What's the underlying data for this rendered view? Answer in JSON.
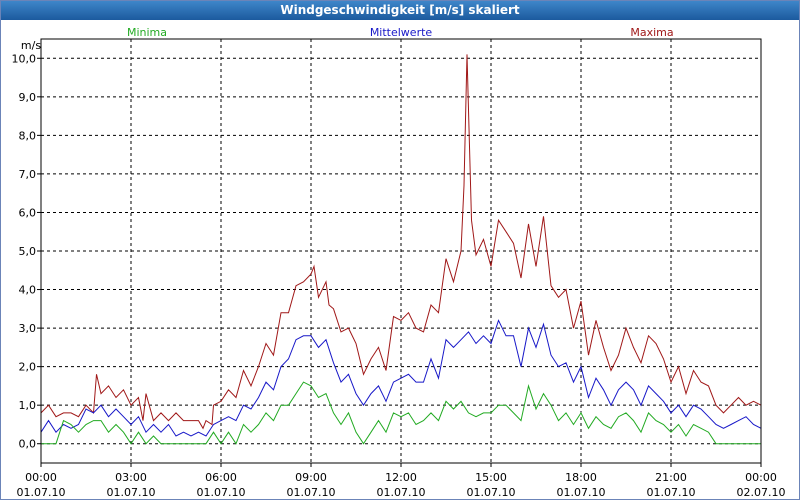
{
  "window": {
    "title": "Windgeschwindigkeit [m/s] skaliert"
  },
  "colors": {
    "min": "#22aa22",
    "mean": "#1818c8",
    "max": "#a01818",
    "grid": "#000000"
  },
  "chart_data": {
    "type": "line",
    "title": "Windgeschwindigkeit [m/s] skaliert",
    "ylabel": "m/s",
    "ylim": [
      -0.5,
      10.5
    ],
    "xlim": [
      0,
      24
    ],
    "y_ticks": [
      0,
      1,
      2,
      3,
      4,
      5,
      6,
      7,
      8,
      9,
      10
    ],
    "y_tick_labels": [
      "0,0",
      "1,0",
      "2,0",
      "3,0",
      "4,0",
      "5,0",
      "6,0",
      "7,0",
      "8,0",
      "9,0",
      "10,0"
    ],
    "x_ticks": [
      0,
      3,
      6,
      9,
      12,
      15,
      18,
      21,
      24
    ],
    "x_tick_labels": [
      [
        "00:00",
        "01.07.10"
      ],
      [
        "03:00",
        "01.07.10"
      ],
      [
        "06:00",
        "01.07.10"
      ],
      [
        "09:00",
        "01.07.10"
      ],
      [
        "12:00",
        "01.07.10"
      ],
      [
        "15:00",
        "01.07.10"
      ],
      [
        "18:00",
        "01.07.10"
      ],
      [
        "21:00",
        "01.07.10"
      ],
      [
        "00:00",
        "02.07.10"
      ]
    ],
    "legend": [
      "Minima",
      "Mittelwerte",
      "Maxima"
    ],
    "grid": true,
    "series": [
      {
        "name": "Maxima",
        "color": "#a01818",
        "points": [
          [
            0,
            0.8
          ],
          [
            0.25,
            1.0
          ],
          [
            0.5,
            0.7
          ],
          [
            0.75,
            0.8
          ],
          [
            1,
            0.8
          ],
          [
            1.25,
            0.7
          ],
          [
            1.5,
            1.0
          ],
          [
            1.75,
            0.8
          ],
          [
            1.85,
            1.8
          ],
          [
            2.0,
            1.3
          ],
          [
            2.25,
            1.5
          ],
          [
            2.5,
            1.2
          ],
          [
            2.75,
            1.4
          ],
          [
            3.0,
            1.0
          ],
          [
            3.25,
            1.2
          ],
          [
            3.4,
            0.6
          ],
          [
            3.5,
            1.3
          ],
          [
            3.75,
            0.6
          ],
          [
            4.0,
            0.8
          ],
          [
            4.25,
            0.6
          ],
          [
            4.5,
            0.8
          ],
          [
            4.75,
            0.6
          ],
          [
            5.0,
            0.6
          ],
          [
            5.25,
            0.6
          ],
          [
            5.4,
            0.4
          ],
          [
            5.5,
            0.6
          ],
          [
            5.7,
            0.5
          ],
          [
            5.75,
            1.0
          ],
          [
            6.0,
            1.1
          ],
          [
            6.25,
            1.4
          ],
          [
            6.5,
            1.2
          ],
          [
            6.75,
            1.9
          ],
          [
            7.0,
            1.5
          ],
          [
            7.25,
            2.0
          ],
          [
            7.5,
            2.6
          ],
          [
            7.75,
            2.3
          ],
          [
            8.0,
            3.4
          ],
          [
            8.25,
            3.4
          ],
          [
            8.5,
            4.1
          ],
          [
            8.75,
            4.2
          ],
          [
            9.0,
            4.4
          ],
          [
            9.1,
            4.6
          ],
          [
            9.25,
            3.8
          ],
          [
            9.5,
            4.2
          ],
          [
            9.6,
            3.6
          ],
          [
            9.75,
            3.5
          ],
          [
            10.0,
            2.9
          ],
          [
            10.25,
            3.0
          ],
          [
            10.5,
            2.6
          ],
          [
            10.75,
            1.8
          ],
          [
            11.0,
            2.2
          ],
          [
            11.25,
            2.5
          ],
          [
            11.5,
            1.9
          ],
          [
            11.75,
            3.3
          ],
          [
            12.0,
            3.2
          ],
          [
            12.25,
            3.4
          ],
          [
            12.5,
            3.0
          ],
          [
            12.75,
            2.9
          ],
          [
            13.0,
            3.6
          ],
          [
            13.25,
            3.4
          ],
          [
            13.5,
            4.8
          ],
          [
            13.75,
            4.2
          ],
          [
            14.0,
            5.0
          ],
          [
            14.1,
            6.7
          ],
          [
            14.2,
            10.1
          ],
          [
            14.35,
            5.8
          ],
          [
            14.5,
            4.9
          ],
          [
            14.75,
            5.3
          ],
          [
            15.0,
            4.6
          ],
          [
            15.25,
            5.8
          ],
          [
            15.5,
            5.5
          ],
          [
            15.75,
            5.2
          ],
          [
            16.0,
            4.3
          ],
          [
            16.25,
            5.7
          ],
          [
            16.5,
            4.6
          ],
          [
            16.75,
            5.9
          ],
          [
            17.0,
            4.1
          ],
          [
            17.25,
            3.8
          ],
          [
            17.5,
            4.0
          ],
          [
            17.75,
            3.0
          ],
          [
            18.0,
            3.7
          ],
          [
            18.25,
            2.3
          ],
          [
            18.5,
            3.2
          ],
          [
            18.75,
            2.5
          ],
          [
            19.0,
            1.9
          ],
          [
            19.25,
            2.3
          ],
          [
            19.5,
            3.0
          ],
          [
            19.75,
            2.5
          ],
          [
            20.0,
            2.1
          ],
          [
            20.25,
            2.8
          ],
          [
            20.5,
            2.6
          ],
          [
            20.75,
            2.2
          ],
          [
            21.0,
            1.6
          ],
          [
            21.25,
            2.0
          ],
          [
            21.5,
            1.3
          ],
          [
            21.75,
            1.9
          ],
          [
            22.0,
            1.6
          ],
          [
            22.25,
            1.5
          ],
          [
            22.5,
            1.0
          ],
          [
            22.75,
            0.8
          ],
          [
            23.0,
            1.0
          ],
          [
            23.25,
            1.2
          ],
          [
            23.5,
            1.0
          ],
          [
            23.75,
            1.1
          ],
          [
            24.0,
            1.0
          ]
        ]
      },
      {
        "name": "Mittelwerte",
        "color": "#1818c8",
        "points": [
          [
            0,
            0.3
          ],
          [
            0.25,
            0.6
          ],
          [
            0.5,
            0.3
          ],
          [
            0.75,
            0.5
          ],
          [
            1,
            0.4
          ],
          [
            1.25,
            0.5
          ],
          [
            1.5,
            0.9
          ],
          [
            1.75,
            0.8
          ],
          [
            2.0,
            1.0
          ],
          [
            2.25,
            0.7
          ],
          [
            2.5,
            0.9
          ],
          [
            2.75,
            0.7
          ],
          [
            3.0,
            0.5
          ],
          [
            3.25,
            0.7
          ],
          [
            3.5,
            0.3
          ],
          [
            3.75,
            0.5
          ],
          [
            4.0,
            0.3
          ],
          [
            4.25,
            0.5
          ],
          [
            4.5,
            0.2
          ],
          [
            4.75,
            0.3
          ],
          [
            5.0,
            0.2
          ],
          [
            5.25,
            0.3
          ],
          [
            5.5,
            0.2
          ],
          [
            5.75,
            0.5
          ],
          [
            6.0,
            0.6
          ],
          [
            6.25,
            0.7
          ],
          [
            6.5,
            0.6
          ],
          [
            6.75,
            1.0
          ],
          [
            7.0,
            0.9
          ],
          [
            7.25,
            1.2
          ],
          [
            7.5,
            1.6
          ],
          [
            7.75,
            1.4
          ],
          [
            8.0,
            2.0
          ],
          [
            8.25,
            2.2
          ],
          [
            8.5,
            2.7
          ],
          [
            8.75,
            2.8
          ],
          [
            9.0,
            2.8
          ],
          [
            9.25,
            2.5
          ],
          [
            9.5,
            2.7
          ],
          [
            9.75,
            2.1
          ],
          [
            10.0,
            1.6
          ],
          [
            10.25,
            1.8
          ],
          [
            10.5,
            1.3
          ],
          [
            10.75,
            1.0
          ],
          [
            11.0,
            1.3
          ],
          [
            11.25,
            1.5
          ],
          [
            11.5,
            1.1
          ],
          [
            11.75,
            1.6
          ],
          [
            12.0,
            1.7
          ],
          [
            12.25,
            1.8
          ],
          [
            12.5,
            1.6
          ],
          [
            12.75,
            1.6
          ],
          [
            13.0,
            2.2
          ],
          [
            13.25,
            1.7
          ],
          [
            13.5,
            2.7
          ],
          [
            13.75,
            2.5
          ],
          [
            14.0,
            2.7
          ],
          [
            14.25,
            2.9
          ],
          [
            14.5,
            2.6
          ],
          [
            14.75,
            2.8
          ],
          [
            15.0,
            2.6
          ],
          [
            15.25,
            3.2
          ],
          [
            15.5,
            2.8
          ],
          [
            15.75,
            2.8
          ],
          [
            16.0,
            2.0
          ],
          [
            16.25,
            3.0
          ],
          [
            16.5,
            2.5
          ],
          [
            16.75,
            3.1
          ],
          [
            17.0,
            2.3
          ],
          [
            17.25,
            2.0
          ],
          [
            17.5,
            2.1
          ],
          [
            17.75,
            1.6
          ],
          [
            18.0,
            2.0
          ],
          [
            18.25,
            1.2
          ],
          [
            18.5,
            1.7
          ],
          [
            18.75,
            1.4
          ],
          [
            19.0,
            1.0
          ],
          [
            19.25,
            1.4
          ],
          [
            19.5,
            1.6
          ],
          [
            19.75,
            1.4
          ],
          [
            20.0,
            1.0
          ],
          [
            20.25,
            1.5
          ],
          [
            20.5,
            1.3
          ],
          [
            20.75,
            1.1
          ],
          [
            21.0,
            0.8
          ],
          [
            21.25,
            1.0
          ],
          [
            21.5,
            0.7
          ],
          [
            21.75,
            1.0
          ],
          [
            22.0,
            0.9
          ],
          [
            22.25,
            0.7
          ],
          [
            22.5,
            0.5
          ],
          [
            22.75,
            0.4
          ],
          [
            23.0,
            0.5
          ],
          [
            23.25,
            0.6
          ],
          [
            23.5,
            0.7
          ],
          [
            23.75,
            0.5
          ],
          [
            24.0,
            0.4
          ]
        ]
      },
      {
        "name": "Minima",
        "color": "#22aa22",
        "points": [
          [
            0,
            0.0
          ],
          [
            0.25,
            0.0
          ],
          [
            0.5,
            0.0
          ],
          [
            0.75,
            0.6
          ],
          [
            1,
            0.5
          ],
          [
            1.25,
            0.3
          ],
          [
            1.5,
            0.5
          ],
          [
            1.75,
            0.6
          ],
          [
            2.0,
            0.6
          ],
          [
            2.25,
            0.3
          ],
          [
            2.5,
            0.5
          ],
          [
            2.75,
            0.3
          ],
          [
            3.0,
            0.0
          ],
          [
            3.25,
            0.3
          ],
          [
            3.5,
            0.0
          ],
          [
            3.75,
            0.2
          ],
          [
            4.0,
            0.0
          ],
          [
            4.25,
            0.0
          ],
          [
            4.5,
            0.0
          ],
          [
            4.75,
            0.0
          ],
          [
            5.0,
            0.0
          ],
          [
            5.25,
            0.0
          ],
          [
            5.5,
            0.0
          ],
          [
            5.75,
            0.3
          ],
          [
            6.0,
            0.0
          ],
          [
            6.25,
            0.3
          ],
          [
            6.5,
            0.0
          ],
          [
            6.75,
            0.5
          ],
          [
            7.0,
            0.3
          ],
          [
            7.25,
            0.5
          ],
          [
            7.5,
            0.8
          ],
          [
            7.75,
            0.6
          ],
          [
            8.0,
            1.0
          ],
          [
            8.25,
            1.0
          ],
          [
            8.5,
            1.3
          ],
          [
            8.75,
            1.6
          ],
          [
            9.0,
            1.5
          ],
          [
            9.25,
            1.2
          ],
          [
            9.5,
            1.3
          ],
          [
            9.75,
            0.8
          ],
          [
            10.0,
            0.5
          ],
          [
            10.25,
            0.8
          ],
          [
            10.5,
            0.3
          ],
          [
            10.75,
            0.0
          ],
          [
            11.0,
            0.3
          ],
          [
            11.25,
            0.6
          ],
          [
            11.5,
            0.3
          ],
          [
            11.75,
            0.8
          ],
          [
            12.0,
            0.7
          ],
          [
            12.25,
            0.8
          ],
          [
            12.5,
            0.5
          ],
          [
            12.75,
            0.6
          ],
          [
            13.0,
            0.8
          ],
          [
            13.25,
            0.6
          ],
          [
            13.5,
            1.1
          ],
          [
            13.75,
            0.9
          ],
          [
            14.0,
            1.1
          ],
          [
            14.25,
            0.8
          ],
          [
            14.5,
            0.7
          ],
          [
            14.75,
            0.8
          ],
          [
            15.0,
            0.8
          ],
          [
            15.25,
            1.0
          ],
          [
            15.5,
            1.0
          ],
          [
            15.75,
            0.8
          ],
          [
            16.0,
            0.6
          ],
          [
            16.25,
            1.5
          ],
          [
            16.5,
            0.9
          ],
          [
            16.75,
            1.3
          ],
          [
            17.0,
            1.0
          ],
          [
            17.25,
            0.6
          ],
          [
            17.5,
            0.8
          ],
          [
            17.75,
            0.5
          ],
          [
            18.0,
            0.8
          ],
          [
            18.25,
            0.4
          ],
          [
            18.5,
            0.7
          ],
          [
            18.75,
            0.5
          ],
          [
            19.0,
            0.4
          ],
          [
            19.25,
            0.7
          ],
          [
            19.5,
            0.8
          ],
          [
            19.75,
            0.6
          ],
          [
            20.0,
            0.3
          ],
          [
            20.25,
            0.8
          ],
          [
            20.5,
            0.6
          ],
          [
            20.75,
            0.5
          ],
          [
            21.0,
            0.3
          ],
          [
            21.25,
            0.5
          ],
          [
            21.5,
            0.2
          ],
          [
            21.75,
            0.5
          ],
          [
            22.0,
            0.4
          ],
          [
            22.25,
            0.3
          ],
          [
            22.5,
            0.0
          ],
          [
            22.75,
            0.0
          ],
          [
            23.0,
            0.0
          ],
          [
            23.25,
            0.0
          ],
          [
            23.5,
            0.0
          ],
          [
            23.75,
            0.0
          ],
          [
            24.0,
            0.0
          ]
        ]
      }
    ]
  }
}
